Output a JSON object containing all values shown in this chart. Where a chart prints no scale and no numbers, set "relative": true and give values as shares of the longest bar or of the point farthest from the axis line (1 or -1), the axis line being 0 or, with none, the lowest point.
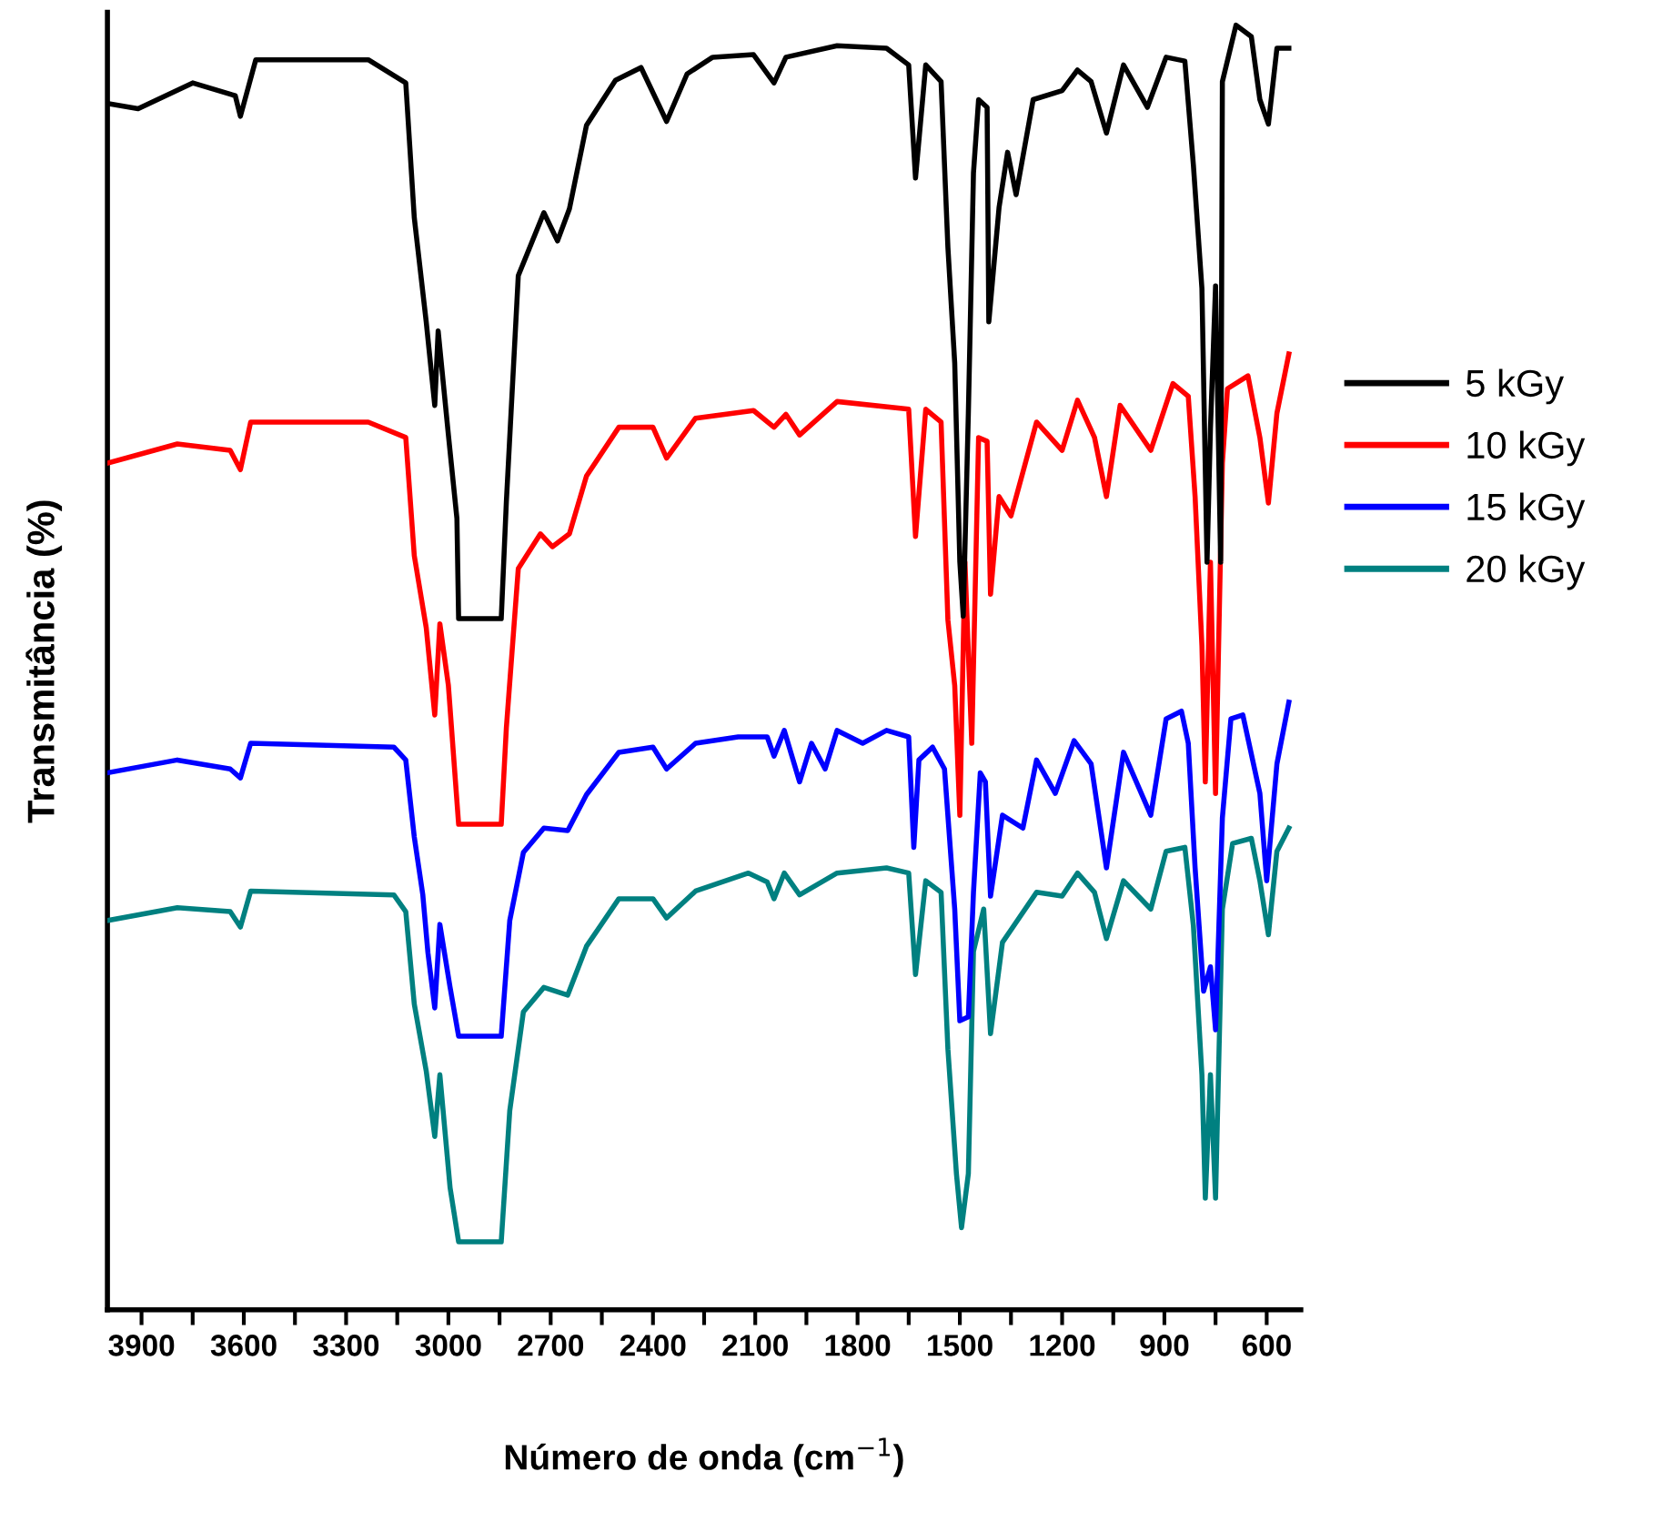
{
  "chart_data": {
    "type": "line",
    "relative": true,
    "xlabel": "Número de onda (cm$^{−1}$)",
    "ylabel": "Transmitância (%)",
    "xlim": [
      4000,
      500
    ],
    "xticks": [
      3900,
      {
        "value": 3750,
        "label": null
      },
      3600,
      {
        "value": 3450,
        "label": null
      },
      3300,
      {
        "value": 3150,
        "label": null
      },
      3000,
      {
        "value": 2850,
        "label": null
      },
      2700,
      {
        "value": 2550,
        "label": null
      },
      2400,
      {
        "value": 2250,
        "label": null
      },
      2100,
      {
        "value": 1950,
        "label": null
      },
      1800,
      {
        "value": 1650,
        "label": null
      },
      1500,
      {
        "value": 1350,
        "label": null
      },
      1200,
      {
        "value": 1050,
        "label": null
      },
      900,
      {
        "value": 750,
        "label": null
      },
      600
    ],
    "tick_labels": "x",
    "grid": false,
    "legend": "right",
    "line_style": "solid",
    "marker": "none",
    "series": [
      {
        "name": "5 kGy",
        "color": "#000000",
        "x": [
          4000,
          3910,
          3750,
          3625,
          3610,
          3565,
          3235,
          3125,
          3100,
          3065,
          3040,
          3030,
          3000,
          2975,
          2970,
          2845,
          2830,
          2795,
          2720,
          2680,
          2645,
          2595,
          2510,
          2435,
          2360,
          2300,
          2225,
          2105,
          2045,
          2010,
          1860,
          1715,
          1650,
          1630,
          1600,
          1555,
          1535,
          1515,
          1500,
          1490,
          1475,
          1460,
          1445,
          1420,
          1415,
          1385,
          1360,
          1335,
          1285,
          1200,
          1155,
          1115,
          1070,
          1020,
          950,
          895,
          840,
          815,
          790,
          775,
          765,
          750,
          735,
          730,
          690,
          645,
          620,
          595,
          570,
          535
        ],
        "values": [
          0.939,
          0.935,
          0.955,
          0.945,
          0.929,
          0.973,
          0.973,
          0.955,
          0.85,
          0.769,
          0.704,
          0.762,
          0.681,
          0.616,
          0.538,
          0.538,
          0.629,
          0.805,
          0.854,
          0.832,
          0.857,
          0.922,
          0.957,
          0.967,
          0.925,
          0.962,
          0.975,
          0.977,
          0.955,
          0.975,
          0.984,
          0.982,
          0.969,
          0.881,
          0.969,
          0.956,
          0.827,
          0.737,
          0.582,
          0.54,
          0.698,
          0.885,
          0.942,
          0.936,
          0.769,
          0.858,
          0.901,
          0.868,
          0.942,
          0.949,
          0.965,
          0.956,
          0.916,
          0.969,
          0.936,
          0.975,
          0.972,
          0.891,
          0.795,
          0.582,
          0.686,
          0.797,
          0.582,
          0.956,
          1.0,
          0.991,
          0.942,
          0.923,
          0.982,
          0.982
        ]
      },
      {
        "name": "10 kGy",
        "color": "#ff0000",
        "x": [
          4000,
          3795,
          3640,
          3610,
          3580,
          3235,
          3125,
          3100,
          3065,
          3040,
          3025,
          3000,
          2970,
          2845,
          2830,
          2795,
          2730,
          2695,
          2645,
          2595,
          2500,
          2400,
          2360,
          2275,
          2105,
          2045,
          2010,
          1970,
          1860,
          1650,
          1630,
          1600,
          1555,
          1535,
          1515,
          1500,
          1485,
          1465,
          1445,
          1420,
          1410,
          1385,
          1350,
          1275,
          1200,
          1155,
          1105,
          1070,
          1030,
          940,
          875,
          830,
          810,
          790,
          780,
          765,
          750,
          730,
          715,
          655,
          620,
          595,
          570,
          535
        ],
        "values": [
          0.659,
          0.674,
          0.669,
          0.654,
          0.691,
          0.691,
          0.679,
          0.587,
          0.531,
          0.463,
          0.534,
          0.486,
          0.378,
          0.378,
          0.453,
          0.577,
          0.604,
          0.594,
          0.604,
          0.649,
          0.687,
          0.687,
          0.663,
          0.694,
          0.7,
          0.687,
          0.697,
          0.681,
          0.707,
          0.701,
          0.602,
          0.701,
          0.691,
          0.537,
          0.486,
          0.385,
          0.582,
          0.441,
          0.679,
          0.676,
          0.557,
          0.633,
          0.618,
          0.691,
          0.669,
          0.708,
          0.679,
          0.633,
          0.704,
          0.669,
          0.721,
          0.711,
          0.633,
          0.517,
          0.411,
          0.582,
          0.402,
          0.659,
          0.717,
          0.727,
          0.679,
          0.628,
          0.698,
          0.744
        ]
      },
      {
        "name": "15 kGy",
        "color": "#0000ff",
        "x": [
          4000,
          3795,
          3640,
          3610,
          3580,
          3160,
          3125,
          3100,
          3075,
          3060,
          3040,
          3025,
          2995,
          2970,
          2845,
          2820,
          2780,
          2720,
          2650,
          2595,
          2500,
          2400,
          2360,
          2275,
          2150,
          2065,
          2045,
          2015,
          1970,
          1935,
          1895,
          1860,
          1785,
          1715,
          1650,
          1635,
          1620,
          1580,
          1545,
          1515,
          1500,
          1475,
          1460,
          1440,
          1425,
          1410,
          1375,
          1315,
          1275,
          1220,
          1165,
          1115,
          1070,
          1020,
          940,
          895,
          850,
          830,
          810,
          785,
          765,
          750,
          730,
          705,
          670,
          620,
          600,
          570,
          535
        ],
        "values": [
          0.418,
          0.428,
          0.421,
          0.414,
          0.441,
          0.438,
          0.428,
          0.368,
          0.323,
          0.278,
          0.235,
          0.3,
          0.251,
          0.213,
          0.213,
          0.303,
          0.356,
          0.375,
          0.373,
          0.401,
          0.434,
          0.438,
          0.421,
          0.441,
          0.446,
          0.446,
          0.431,
          0.451,
          0.411,
          0.441,
          0.421,
          0.451,
          0.441,
          0.451,
          0.446,
          0.36,
          0.428,
          0.438,
          0.421,
          0.312,
          0.225,
          0.228,
          0.325,
          0.418,
          0.411,
          0.322,
          0.385,
          0.375,
          0.428,
          0.402,
          0.443,
          0.425,
          0.344,
          0.434,
          0.385,
          0.46,
          0.466,
          0.441,
          0.344,
          0.248,
          0.267,
          0.218,
          0.383,
          0.46,
          0.463,
          0.402,
          0.334,
          0.425,
          0.473
        ]
      },
      {
        "name": "20 kGy",
        "color": "#008080",
        "x": [
          4000,
          3795,
          3640,
          3610,
          3580,
          3160,
          3125,
          3100,
          3065,
          3040,
          3025,
          2995,
          2970,
          2845,
          2820,
          2780,
          2720,
          2650,
          2595,
          2500,
          2400,
          2360,
          2275,
          2120,
          2065,
          2045,
          2015,
          1970,
          1860,
          1715,
          1650,
          1630,
          1600,
          1555,
          1535,
          1510,
          1495,
          1475,
          1460,
          1430,
          1410,
          1375,
          1275,
          1200,
          1155,
          1105,
          1070,
          1020,
          940,
          895,
          840,
          815,
          790,
          780,
          765,
          750,
          730,
          700,
          645,
          620,
          595,
          570,
          535
        ],
        "values": [
          0.303,
          0.313,
          0.31,
          0.298,
          0.326,
          0.323,
          0.31,
          0.238,
          0.186,
          0.135,
          0.183,
          0.095,
          0.053,
          0.053,
          0.155,
          0.232,
          0.251,
          0.245,
          0.283,
          0.32,
          0.32,
          0.305,
          0.326,
          0.34,
          0.333,
          0.32,
          0.34,
          0.323,
          0.34,
          0.344,
          0.34,
          0.261,
          0.334,
          0.325,
          0.203,
          0.106,
          0.064,
          0.106,
          0.279,
          0.312,
          0.215,
          0.286,
          0.325,
          0.322,
          0.34,
          0.325,
          0.289,
          0.334,
          0.312,
          0.357,
          0.36,
          0.299,
          0.183,
          0.087,
          0.183,
          0.087,
          0.312,
          0.363,
          0.367,
          0.334,
          0.292,
          0.357,
          0.375
        ]
      }
    ]
  }
}
